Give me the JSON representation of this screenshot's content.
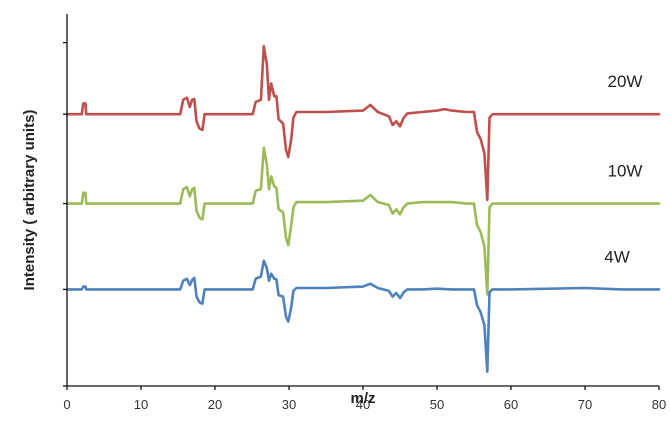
{
  "chart_data": {
    "type": "line",
    "title": "",
    "xlabel": "m/z",
    "ylabel": "Intensity ( arbitrary units)",
    "xlim": [
      0,
      80
    ],
    "x_ticks": [
      0,
      10,
      20,
      30,
      40,
      50,
      60,
      70,
      80
    ],
    "grid": false,
    "legend": "none",
    "series": [
      {
        "name": "20W",
        "color": "#c0504d",
        "baseline": 2.85,
        "points": [
          [
            0,
            2.85
          ],
          [
            2,
            2.85
          ],
          [
            2.2,
            3.0
          ],
          [
            2.5,
            3.0
          ],
          [
            2.6,
            2.85
          ],
          [
            15.3,
            2.85
          ],
          [
            15.7,
            3.05
          ],
          [
            16.2,
            3.08
          ],
          [
            16.6,
            2.95
          ],
          [
            16.9,
            3.05
          ],
          [
            17.2,
            3.06
          ],
          [
            17.5,
            2.75
          ],
          [
            17.9,
            2.65
          ],
          [
            18.3,
            2.63
          ],
          [
            18.6,
            2.85
          ],
          [
            25.1,
            2.85
          ],
          [
            25.5,
            3.02
          ],
          [
            26.2,
            3.05
          ],
          [
            26.6,
            3.8
          ],
          [
            27.0,
            3.55
          ],
          [
            27.3,
            3.05
          ],
          [
            27.6,
            3.28
          ],
          [
            28.0,
            3.1
          ],
          [
            28.3,
            3.1
          ],
          [
            28.6,
            2.78
          ],
          [
            29.2,
            2.72
          ],
          [
            29.6,
            2.35
          ],
          [
            29.9,
            2.25
          ],
          [
            30.3,
            2.5
          ],
          [
            30.6,
            2.8
          ],
          [
            31.0,
            2.88
          ],
          [
            35,
            2.88
          ],
          [
            40,
            2.9
          ],
          [
            41.0,
            2.98
          ],
          [
            42,
            2.88
          ],
          [
            43.5,
            2.82
          ],
          [
            44.0,
            2.7
          ],
          [
            44.5,
            2.75
          ],
          [
            45.0,
            2.68
          ],
          [
            45.5,
            2.8
          ],
          [
            46,
            2.86
          ],
          [
            48,
            2.88
          ],
          [
            50,
            2.9
          ],
          [
            51,
            2.92
          ],
          [
            52,
            2.9
          ],
          [
            54,
            2.88
          ],
          [
            55.0,
            2.88
          ],
          [
            55.4,
            2.6
          ],
          [
            55.9,
            2.5
          ],
          [
            56.4,
            2.3
          ],
          [
            56.8,
            1.65
          ],
          [
            57.1,
            2.8
          ],
          [
            57.5,
            2.85
          ],
          [
            60,
            2.85
          ],
          [
            70,
            2.85
          ],
          [
            80,
            2.85
          ]
        ]
      },
      {
        "name": "10W",
        "color": "#9bbb59",
        "baseline": 1.6,
        "points": [
          [
            0,
            1.6
          ],
          [
            2,
            1.6
          ],
          [
            2.2,
            1.75
          ],
          [
            2.5,
            1.75
          ],
          [
            2.6,
            1.6
          ],
          [
            15.3,
            1.6
          ],
          [
            15.7,
            1.8
          ],
          [
            16.2,
            1.83
          ],
          [
            16.6,
            1.7
          ],
          [
            16.9,
            1.8
          ],
          [
            17.2,
            1.82
          ],
          [
            17.5,
            1.5
          ],
          [
            17.9,
            1.4
          ],
          [
            18.3,
            1.38
          ],
          [
            18.6,
            1.6
          ],
          [
            25.1,
            1.6
          ],
          [
            25.5,
            1.78
          ],
          [
            26.2,
            1.8
          ],
          [
            26.6,
            2.38
          ],
          [
            27.0,
            2.15
          ],
          [
            27.3,
            1.8
          ],
          [
            27.6,
            1.98
          ],
          [
            28.0,
            1.84
          ],
          [
            28.3,
            1.82
          ],
          [
            28.6,
            1.52
          ],
          [
            29.2,
            1.48
          ],
          [
            29.6,
            1.12
          ],
          [
            29.9,
            1.02
          ],
          [
            30.3,
            1.3
          ],
          [
            30.6,
            1.55
          ],
          [
            31.0,
            1.62
          ],
          [
            35,
            1.62
          ],
          [
            40,
            1.64
          ],
          [
            41.0,
            1.72
          ],
          [
            42,
            1.62
          ],
          [
            43.5,
            1.58
          ],
          [
            44.0,
            1.46
          ],
          [
            44.5,
            1.52
          ],
          [
            45.0,
            1.45
          ],
          [
            45.5,
            1.55
          ],
          [
            46,
            1.6
          ],
          [
            48,
            1.62
          ],
          [
            50,
            1.62
          ],
          [
            52,
            1.62
          ],
          [
            54,
            1.6
          ],
          [
            55.0,
            1.6
          ],
          [
            55.4,
            1.3
          ],
          [
            55.9,
            1.2
          ],
          [
            56.4,
            1.0
          ],
          [
            56.8,
            0.33
          ],
          [
            57.1,
            1.55
          ],
          [
            57.5,
            1.6
          ],
          [
            60,
            1.6
          ],
          [
            70,
            1.6
          ],
          [
            80,
            1.6
          ]
        ]
      },
      {
        "name": "4W",
        "color": "#4f81bd",
        "baseline": 0.4,
        "points": [
          [
            0,
            0.4
          ],
          [
            2,
            0.4
          ],
          [
            2.2,
            0.44
          ],
          [
            2.5,
            0.44
          ],
          [
            2.6,
            0.4
          ],
          [
            15.3,
            0.4
          ],
          [
            15.7,
            0.52
          ],
          [
            16.2,
            0.55
          ],
          [
            16.6,
            0.46
          ],
          [
            16.9,
            0.53
          ],
          [
            17.2,
            0.56
          ],
          [
            17.5,
            0.3
          ],
          [
            17.9,
            0.22
          ],
          [
            18.3,
            0.2
          ],
          [
            18.6,
            0.4
          ],
          [
            25.1,
            0.4
          ],
          [
            25.5,
            0.55
          ],
          [
            26.2,
            0.58
          ],
          [
            26.6,
            0.8
          ],
          [
            27.0,
            0.7
          ],
          [
            27.3,
            0.52
          ],
          [
            27.6,
            0.62
          ],
          [
            28.0,
            0.55
          ],
          [
            28.3,
            0.54
          ],
          [
            28.6,
            0.32
          ],
          [
            29.2,
            0.3
          ],
          [
            29.6,
            0.02
          ],
          [
            29.9,
            -0.05
          ],
          [
            30.3,
            0.15
          ],
          [
            30.6,
            0.38
          ],
          [
            31.0,
            0.42
          ],
          [
            35,
            0.42
          ],
          [
            40,
            0.44
          ],
          [
            41.0,
            0.48
          ],
          [
            42,
            0.42
          ],
          [
            43.5,
            0.38
          ],
          [
            44.0,
            0.3
          ],
          [
            44.5,
            0.35
          ],
          [
            45.0,
            0.28
          ],
          [
            45.5,
            0.36
          ],
          [
            46,
            0.4
          ],
          [
            48,
            0.4
          ],
          [
            50,
            0.41
          ],
          [
            52,
            0.4
          ],
          [
            54,
            0.4
          ],
          [
            55.0,
            0.4
          ],
          [
            55.4,
            0.18
          ],
          [
            55.9,
            0.08
          ],
          [
            56.4,
            -0.1
          ],
          [
            56.8,
            -0.75
          ],
          [
            57.1,
            0.36
          ],
          [
            57.5,
            0.4
          ],
          [
            60,
            0.4
          ],
          [
            70,
            0.42
          ],
          [
            75,
            0.4
          ],
          [
            80,
            0.4
          ]
        ]
      }
    ],
    "annotations": [
      "20W",
      "10W",
      "4W"
    ]
  }
}
